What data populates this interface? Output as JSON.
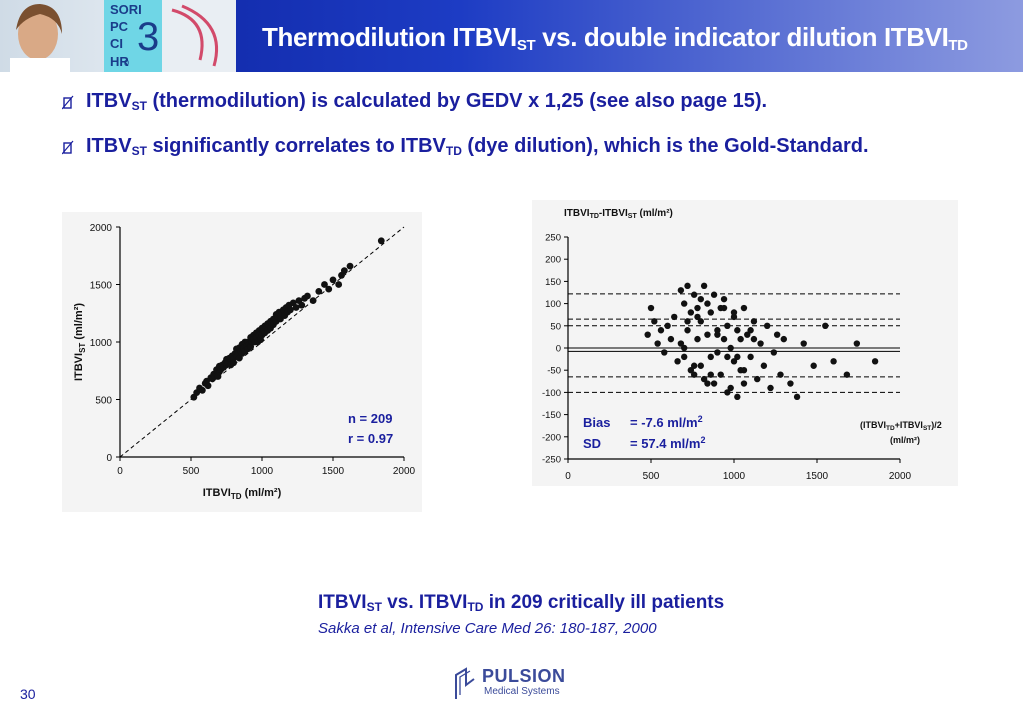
{
  "header": {
    "title_a": "Thermodilution ITBVI",
    "title_a_sub": "ST",
    "title_b": " vs. double indicator dilution ITBVI",
    "title_b_sub": "TD",
    "monitor_lines": [
      "SORI",
      "PC",
      "CI",
      "HR"
    ],
    "monitor_digit": "3",
    "monitor_small": "0"
  },
  "bullets": [
    {
      "pre": "ITBV",
      "sub": "ST",
      "post": " (thermodilution) is calculated by GEDV x 1,25 (see also page 15)."
    },
    {
      "pre": "ITBV",
      "sub": "ST",
      "mid": " significantly correlates to ITBV",
      "sub2": "TD",
      "post": "  (dye dilution), which is the Gold-Standard."
    }
  ],
  "chart_data": [
    {
      "type": "scatter",
      "xlabel": "ITBVI",
      "xlabel_sub": "TD",
      "xlabel_unit": " (ml/m²)",
      "ylabel": "ITBVI",
      "ylabel_sub": "ST",
      "ylabel_unit": " (ml/m²)",
      "xlim": [
        0,
        2000
      ],
      "ylim": [
        0,
        2000
      ],
      "xticks": [
        "0",
        "500",
        "1000",
        "1500",
        "2000"
      ],
      "yticks": [
        "0",
        "500",
        "1000",
        "1500",
        "2000"
      ],
      "identity_line": true,
      "annotation": [
        "n = 209",
        "r = 0.97"
      ],
      "x": [
        520,
        540,
        560,
        580,
        600,
        610,
        620,
        640,
        650,
        660,
        670,
        680,
        690,
        700,
        700,
        710,
        720,
        730,
        740,
        750,
        750,
        760,
        770,
        780,
        780,
        790,
        800,
        800,
        810,
        820,
        820,
        830,
        840,
        840,
        850,
        860,
        860,
        870,
        880,
        880,
        890,
        900,
        900,
        910,
        920,
        920,
        930,
        940,
        940,
        950,
        960,
        960,
        970,
        980,
        980,
        990,
        1000,
        1000,
        1010,
        1020,
        1020,
        1030,
        1040,
        1040,
        1050,
        1060,
        1060,
        1070,
        1080,
        1080,
        1090,
        1100,
        1100,
        1110,
        1120,
        1130,
        1140,
        1150,
        1160,
        1170,
        1180,
        1190,
        1200,
        1220,
        1240,
        1260,
        1280,
        1300,
        1320,
        1360,
        1400,
        1440,
        1470,
        1500,
        1540,
        1560,
        1580,
        1620,
        1840
      ],
      "y": [
        520,
        560,
        600,
        580,
        640,
        660,
        620,
        690,
        680,
        720,
        700,
        760,
        700,
        740,
        790,
        760,
        800,
        780,
        820,
        800,
        850,
        820,
        860,
        850,
        800,
        880,
        860,
        820,
        900,
        880,
        940,
        900,
        860,
        950,
        920,
        900,
        980,
        950,
        920,
        1000,
        960,
        1000,
        940,
        980,
        1040,
        960,
        1000,
        1060,
        1020,
        1000,
        1080,
        1040,
        1000,
        1100,
        1060,
        1020,
        1120,
        1060,
        1100,
        1140,
        1080,
        1120,
        1160,
        1100,
        1140,
        1180,
        1120,
        1160,
        1200,
        1150,
        1200,
        1240,
        1180,
        1220,
        1260,
        1200,
        1250,
        1280,
        1230,
        1300,
        1260,
        1320,
        1280,
        1340,
        1300,
        1360,
        1320,
        1380,
        1400,
        1360,
        1440,
        1500,
        1460,
        1540,
        1500,
        1580,
        1620,
        1660,
        1880
      ]
    },
    {
      "type": "scatter",
      "title": "ITBVI",
      "title_sub": "TD",
      "title_mid": "-ITBVI",
      "title_sub2": "ST",
      "title_unit": " (ml/m²)",
      "xlabel_line1": "(ITBVI",
      "xlabel_sub1": "TD",
      "xlabel_mid": "+ITBVI",
      "xlabel_sub2": "ST",
      "xlabel_end": ")/2",
      "xlabel_line2": "(ml/m²)",
      "xlim": [
        0,
        2000
      ],
      "ylim": [
        -250,
        250
      ],
      "xticks": [
        "0",
        "500",
        "1000",
        "1500",
        "2000"
      ],
      "yticks": [
        "250",
        "200",
        "150",
        "100",
        "50",
        "0",
        "-50",
        "-100",
        "-150",
        "-200",
        "-250"
      ],
      "mean_line": -7.6,
      "sd_lines": [
        -65,
        50,
        65,
        -100,
        122
      ],
      "annotation": {
        "bias_label": "Bias",
        "bias_value": "=   -7.6 ml/m",
        "bias_exp": "2",
        "sd_label": "SD",
        "sd_value": "=   57.4 ml/m",
        "sd_exp": "2"
      },
      "x": [
        480,
        500,
        520,
        540,
        560,
        580,
        600,
        620,
        640,
        660,
        680,
        680,
        700,
        700,
        720,
        720,
        740,
        740,
        760,
        760,
        780,
        780,
        800,
        800,
        820,
        820,
        840,
        840,
        860,
        860,
        880,
        880,
        900,
        900,
        920,
        920,
        940,
        940,
        960,
        960,
        980,
        980,
        1000,
        1000,
        1020,
        1020,
        1040,
        1040,
        1060,
        1060,
        1080,
        1100,
        1120,
        1140,
        1160,
        1180,
        1200,
        1220,
        1240,
        1260,
        1280,
        1300,
        1340,
        1380,
        1420,
        1480,
        1550,
        1600,
        1680,
        1740,
        1850,
        720,
        760,
        800,
        840,
        900,
        960,
        1000,
        1060,
        1120,
        700,
        780,
        860,
        940,
        1020,
        1100
      ],
      "y": [
        30,
        90,
        60,
        10,
        40,
        -10,
        50,
        20,
        70,
        -30,
        130,
        10,
        100,
        -20,
        140,
        40,
        -50,
        80,
        120,
        -60,
        20,
        90,
        -40,
        60,
        140,
        -70,
        30,
        100,
        -20,
        80,
        120,
        -80,
        40,
        -10,
        90,
        -60,
        20,
        110,
        -100,
        50,
        0,
        -90,
        70,
        -30,
        40,
        -110,
        20,
        -50,
        90,
        -80,
        30,
        -20,
        60,
        -70,
        10,
        -40,
        50,
        -90,
        -10,
        30,
        -60,
        20,
        -80,
        -110,
        10,
        -40,
        50,
        -30,
        -60,
        10,
        -30,
        60,
        -40,
        110,
        -80,
        30,
        -20,
        80,
        -50,
        20,
        0,
        70,
        -60,
        90,
        -20,
        40
      ]
    }
  ],
  "caption": {
    "pre": "ITBVI",
    "sub": "ST",
    "mid": " vs. ITBVI",
    "sub2": "TD",
    "post": " in 209 critically ill patients"
  },
  "citation": "Sakka et al, Intensive Care Med 26: 180-187, 2000",
  "footer": {
    "page_number": "30",
    "logo_name": "PULSION",
    "logo_tagline": "Medical Systems"
  },
  "colors": {
    "header_dark": "#0a1f9a",
    "text_blue": "#1a1f9e",
    "annotation_blue": "#1a1f9e"
  }
}
